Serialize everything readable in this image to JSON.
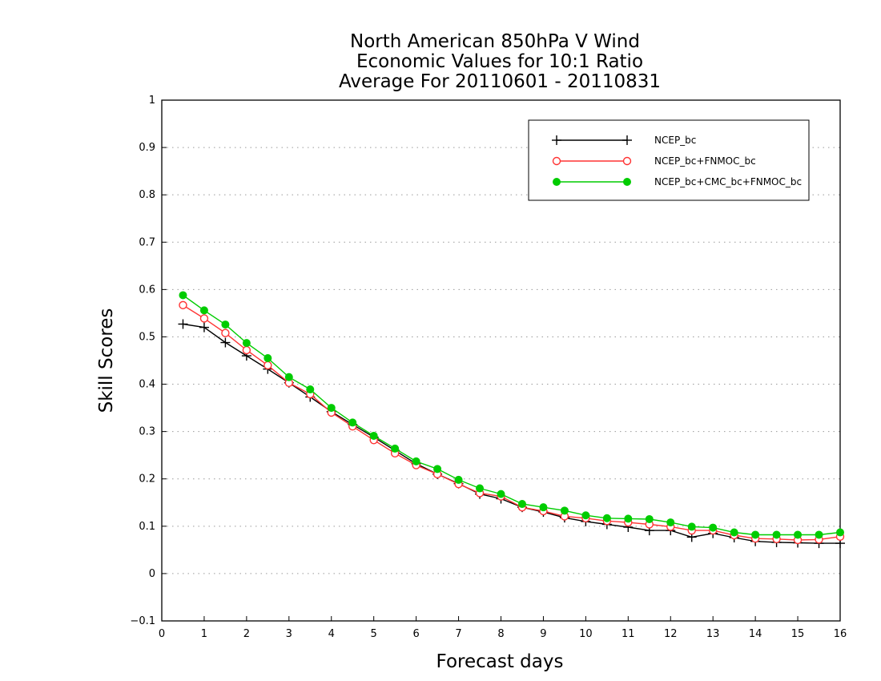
{
  "chart_data": {
    "type": "line",
    "title": [
      "North American 850hPa V Wind",
      "Economic Values for 10:1 Ratio",
      "Average For 20110601 - 20110831"
    ],
    "xlabel": "Forecast days",
    "ylabel": "Skill Scores",
    "xlim": [
      0,
      16
    ],
    "ylim": [
      -0.1,
      1
    ],
    "xticks": [
      "0",
      "1",
      "2",
      "3",
      "4",
      "5",
      "6",
      "7",
      "8",
      "9",
      "10",
      "11",
      "12",
      "13",
      "14",
      "15",
      "16"
    ],
    "yticks": [
      "−0.1",
      "0",
      "0.1",
      "0.2",
      "0.3",
      "0.4",
      "0.5",
      "0.6",
      "0.7",
      "0.8",
      "0.9",
      "1"
    ],
    "grid": "horizontal-dotted",
    "legend_position": "top-right",
    "x": [
      0.5,
      1,
      1.5,
      2,
      2.5,
      3,
      3.5,
      4,
      4.5,
      5,
      5.5,
      6,
      6.5,
      7,
      7.5,
      8,
      8.5,
      9,
      9.5,
      10,
      10.5,
      11,
      11.5,
      12,
      12.5,
      13,
      13.5,
      14,
      14.5,
      15,
      15.5,
      16
    ],
    "series": [
      {
        "name": "NCEP_bc",
        "color": "#000000",
        "marker": "plus",
        "values": [
          0.527,
          0.52,
          0.488,
          0.46,
          0.432,
          0.403,
          0.373,
          0.342,
          0.315,
          0.288,
          0.26,
          0.232,
          0.21,
          0.19,
          0.168,
          0.158,
          0.14,
          0.13,
          0.118,
          0.11,
          0.104,
          0.098,
          0.091,
          0.091,
          0.077,
          0.085,
          0.076,
          0.068,
          0.066,
          0.065,
          0.064,
          0.064
        ]
      },
      {
        "name": "NCEP_bc+FNMOC_bc",
        "color": "#ff3333",
        "marker": "open-circle",
        "values": [
          0.567,
          0.539,
          0.508,
          0.472,
          0.44,
          0.403,
          0.379,
          0.34,
          0.311,
          0.282,
          0.254,
          0.229,
          0.21,
          0.189,
          0.17,
          0.163,
          0.14,
          0.132,
          0.121,
          0.117,
          0.111,
          0.108,
          0.104,
          0.099,
          0.091,
          0.091,
          0.081,
          0.074,
          0.073,
          0.071,
          0.072,
          0.078
        ]
      },
      {
        "name": "NCEP_bc+CMC_bc+FNMOC_bc",
        "color": "#00cc00",
        "marker": "filled-circle",
        "values": [
          0.588,
          0.556,
          0.526,
          0.487,
          0.455,
          0.415,
          0.389,
          0.35,
          0.319,
          0.291,
          0.264,
          0.237,
          0.221,
          0.198,
          0.18,
          0.168,
          0.147,
          0.14,
          0.133,
          0.123,
          0.117,
          0.116,
          0.115,
          0.108,
          0.099,
          0.097,
          0.087,
          0.082,
          0.082,
          0.082,
          0.082,
          0.087
        ]
      }
    ]
  }
}
